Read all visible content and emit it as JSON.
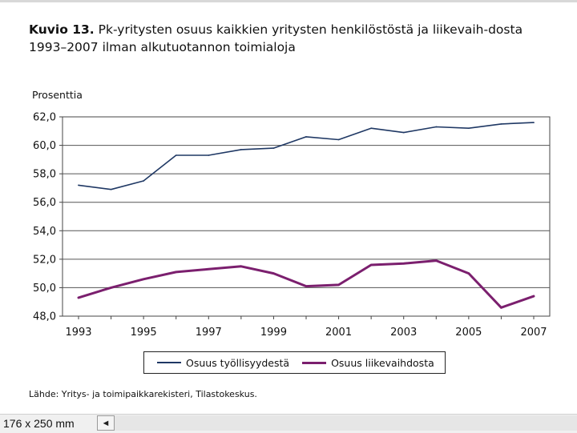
{
  "figure": {
    "title_bold": "Kuvio 13.",
    "title_rest": " Pk-yritysten osuus kaikkien yritysten henkilöstöstä ja liikevaih-dosta 1993–2007 ilman alkutuotannon toimialoja",
    "source": "Lähde: Yritys- ja toimipaikkarekisteri, Tilastokeskus."
  },
  "chart_data": {
    "type": "line",
    "title": "Pk-yritysten osuus kaikkien yritysten henkilöstöstä ja liikevaihdosta 1993–2007 ilman alkutuotannon toimialoja",
    "ylabel": "Prosenttia",
    "xlabel": "",
    "ylim": [
      48.0,
      62.0
    ],
    "xlim": [
      1993,
      2007
    ],
    "y_ticks": [
      "48,0",
      "50,0",
      "52,0",
      "54,0",
      "56,0",
      "58,0",
      "60,0",
      "62,0"
    ],
    "x_ticks": [
      "1993",
      "1995",
      "1997",
      "1999",
      "2001",
      "2003",
      "2005",
      "2007"
    ],
    "grid": true,
    "legend_position": "bottom",
    "x": [
      1993,
      1994,
      1995,
      1996,
      1997,
      1998,
      1999,
      2000,
      2001,
      2002,
      2003,
      2004,
      2005,
      2006,
      2007
    ],
    "series": [
      {
        "name": "Osuus työllisyydestä",
        "color": "#1f3864",
        "values": [
          57.2,
          56.9,
          57.5,
          59.3,
          59.3,
          59.7,
          59.8,
          60.6,
          60.4,
          61.2,
          60.9,
          61.3,
          61.2,
          61.5,
          61.6
        ]
      },
      {
        "name": "Osuus liikevaihdosta",
        "color": "#7b1f6e",
        "values": [
          49.3,
          50.0,
          50.6,
          51.1,
          51.3,
          51.5,
          51.0,
          50.1,
          50.2,
          51.6,
          51.7,
          51.9,
          51.0,
          48.6,
          49.4
        ]
      }
    ]
  },
  "statusbar": {
    "page_size": "176 x 250 mm",
    "scroll_left_icon": "◄"
  }
}
